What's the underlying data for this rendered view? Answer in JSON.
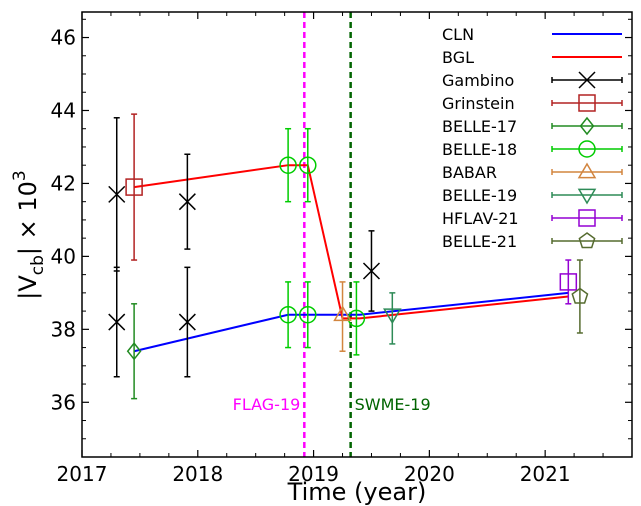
{
  "chart_data": {
    "type": "line",
    "xlabel": "Time (year)",
    "ylabel_main": "|V",
    "ylabel_sub": "cb",
    "ylabel_tail": "| × 10",
    "ylabel_sup": "3",
    "xlim": [
      2017.0,
      2021.75
    ],
    "ylim": [
      34.5,
      46.7
    ],
    "xticks": [
      2017,
      2018,
      2019,
      2020,
      2021
    ],
    "xtick_labels": [
      "2017",
      "2018",
      "2019",
      "2020",
      "2021"
    ],
    "yticks": [
      36,
      38,
      40,
      42,
      44,
      46
    ],
    "ytick_labels": [
      "36",
      "38",
      "40",
      "42",
      "44",
      "46"
    ],
    "vertical_lines": [
      {
        "x": 2018.92,
        "label": "FLAG-19",
        "color": "#ff00ff"
      },
      {
        "x": 2019.32,
        "label": "SWME-19",
        "color": "#006400"
      }
    ],
    "lines": [
      {
        "name": "CLN",
        "color": "#0000ff",
        "x": [
          2017.45,
          2018.78,
          2018.95,
          2019.4,
          2021.2
        ],
        "y": [
          37.4,
          38.4,
          38.4,
          38.4,
          39.0
        ]
      },
      {
        "name": "BGL",
        "color": "#ff0000",
        "x": [
          2017.45,
          2018.78,
          2018.95,
          2019.25,
          2019.4,
          2021.2
        ],
        "y": [
          41.9,
          42.5,
          42.5,
          38.3,
          38.3,
          38.9
        ]
      }
    ],
    "series": [
      {
        "name": "Gambino",
        "color": "#000000",
        "marker": "x",
        "points": [
          {
            "x": 2017.3,
            "y": 41.7,
            "lo": 39.6,
            "hi": 43.8
          },
          {
            "x": 2017.3,
            "y": 38.2,
            "lo": 36.7,
            "hi": 39.7
          },
          {
            "x": 2017.91,
            "y": 41.5,
            "lo": 40.2,
            "hi": 42.8
          },
          {
            "x": 2017.91,
            "y": 38.2,
            "lo": 36.7,
            "hi": 39.7
          },
          {
            "x": 2019.5,
            "y": 39.6,
            "lo": 38.5,
            "hi": 40.7
          }
        ]
      },
      {
        "name": "Grinstein",
        "color": "#b22222",
        "marker": "square",
        "points": [
          {
            "x": 2017.45,
            "y": 41.9,
            "lo": 39.9,
            "hi": 43.9
          }
        ]
      },
      {
        "name": "BELLE-17",
        "color": "#228b22",
        "marker": "diamond",
        "points": [
          {
            "x": 2017.45,
            "y": 37.4,
            "lo": 36.1,
            "hi": 38.7
          }
        ]
      },
      {
        "name": "BELLE-18",
        "color": "#00cc00",
        "marker": "circle",
        "points": [
          {
            "x": 2018.78,
            "y": 42.5,
            "lo": 41.5,
            "hi": 43.5
          },
          {
            "x": 2018.95,
            "y": 42.5,
            "lo": 41.5,
            "hi": 43.5
          },
          {
            "x": 2018.78,
            "y": 38.4,
            "lo": 37.5,
            "hi": 39.3
          },
          {
            "x": 2018.95,
            "y": 38.4,
            "lo": 37.5,
            "hi": 39.3
          },
          {
            "x": 2019.37,
            "y": 38.3,
            "lo": 37.3,
            "hi": 39.3
          }
        ]
      },
      {
        "name": "BABAR",
        "color": "#d2853f",
        "marker": "triangle-up",
        "points": [
          {
            "x": 2019.25,
            "y": 38.4,
            "lo": 37.4,
            "hi": 39.3
          }
        ]
      },
      {
        "name": "BELLE-19",
        "color": "#2e8b57",
        "marker": "triangle-down",
        "points": [
          {
            "x": 2019.68,
            "y": 38.4,
            "lo": 37.6,
            "hi": 39.0
          }
        ]
      },
      {
        "name": "HFLAV-21",
        "color": "#9400d3",
        "marker": "square",
        "points": [
          {
            "x": 2021.2,
            "y": 39.3,
            "lo": 38.7,
            "hi": 39.9
          }
        ]
      },
      {
        "name": "BELLE-21",
        "color": "#556b2f",
        "marker": "pentagon",
        "points": [
          {
            "x": 2021.3,
            "y": 38.9,
            "lo": 37.9,
            "hi": 39.9
          }
        ]
      }
    ],
    "legend_position": "top-right",
    "legend": [
      {
        "label": "CLN",
        "kind": "line",
        "color": "#0000ff"
      },
      {
        "label": "BGL",
        "kind": "line",
        "color": "#ff0000"
      },
      {
        "label": "Gambino",
        "kind": "marker",
        "marker": "x",
        "color": "#000000"
      },
      {
        "label": "Grinstein",
        "kind": "marker",
        "marker": "square",
        "color": "#b22222"
      },
      {
        "label": "BELLE-17",
        "kind": "marker",
        "marker": "diamond",
        "color": "#228b22"
      },
      {
        "label": "BELLE-18",
        "kind": "marker",
        "marker": "circle",
        "color": "#00cc00"
      },
      {
        "label": "BABAR",
        "kind": "marker",
        "marker": "triangle-up",
        "color": "#d2853f"
      },
      {
        "label": "BELLE-19",
        "kind": "marker",
        "marker": "triangle-down",
        "color": "#2e8b57"
      },
      {
        "label": "HFLAV-21",
        "kind": "marker",
        "marker": "square",
        "color": "#9400d3"
      },
      {
        "label": "BELLE-21",
        "kind": "marker",
        "marker": "pentagon",
        "color": "#556b2f"
      }
    ]
  }
}
